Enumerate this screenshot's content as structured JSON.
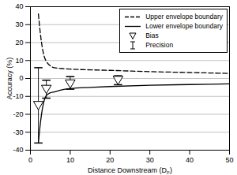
{
  "chart_data": {
    "type": "line",
    "x_label": "Distance Downstream (Dₚ)",
    "y_label": "Accuracy (%)",
    "xlim": [
      0,
      50
    ],
    "xticks": [
      0,
      10,
      20,
      30,
      40,
      50
    ],
    "ylim": [
      -40,
      40
    ],
    "yticks": [
      -40,
      -30,
      -20,
      -10,
      0,
      10,
      20,
      30,
      40
    ],
    "grid": true,
    "legend": "top-right",
    "series": [
      {
        "name": "Upper envelope boundary",
        "type": "line",
        "line_style": "dashed",
        "color": "#000000",
        "x": [
          2,
          2.5,
          3,
          3.5,
          4,
          5,
          6,
          8,
          10,
          15,
          20,
          30,
          40,
          50
        ],
        "values": [
          36,
          25,
          17,
          12,
          9.5,
          7,
          6,
          5.5,
          5.2,
          4.8,
          4.5,
          3.8,
          3.3,
          2.8
        ]
      },
      {
        "name": "Lower envelope boundary",
        "type": "line",
        "line_style": "solid",
        "color": "#000000",
        "x": [
          2,
          2.5,
          3,
          3.5,
          4,
          5,
          6,
          8,
          10,
          15,
          20,
          30,
          40,
          50
        ],
        "values": [
          -36,
          -25,
          -17,
          -12,
          -9.5,
          -8,
          -7.5,
          -6.3,
          -5.7,
          -5,
          -4.5,
          -3.8,
          -3.4,
          -3
        ]
      },
      {
        "name": "Bias",
        "type": "scatter",
        "marker": "triangle-down",
        "color": "#000000",
        "x": [
          2,
          4,
          10,
          22
        ],
        "values": [
          -15,
          -6,
          -3,
          -1
        ]
      },
      {
        "name": "Precision",
        "type": "errorbar",
        "color": "#000000",
        "x": [
          2,
          4,
          10,
          22
        ],
        "low": [
          -36,
          -11,
          -6,
          -3.5
        ],
        "high": [
          6,
          -1,
          1,
          1.5
        ]
      }
    ]
  }
}
